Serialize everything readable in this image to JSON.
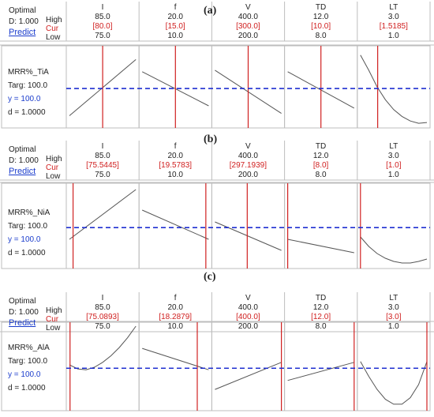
{
  "panels": [
    {
      "letter": "(a)",
      "optimal": "Optimal",
      "d_header": "D: 1.000",
      "predict": "Predict",
      "row_labels": {
        "high": "High",
        "cur": "Cur",
        "low": "Low"
      },
      "response": "MRR%_TiA",
      "targ": "Targ: 100.0",
      "y_text": "y = 100.0",
      "d_text": "d = 1.0000",
      "factors": [
        {
          "name": "I",
          "high": "85.0",
          "cur": "[80.0]",
          "low": "75.0"
        },
        {
          "name": "f",
          "high": "20.0",
          "cur": "[15.0]",
          "low": "10.0"
        },
        {
          "name": "V",
          "high": "400.0",
          "cur": "[300.0]",
          "low": "200.0"
        },
        {
          "name": "TD",
          "high": "12.0",
          "cur": "[10.0]",
          "low": "8.0"
        },
        {
          "name": "LT",
          "high": "3.0",
          "cur": "[1.5185]",
          "low": "1.0"
        }
      ]
    },
    {
      "letter": "(b)",
      "optimal": "Optimal",
      "d_header": "D: 1.000",
      "predict": "Predict",
      "row_labels": {
        "high": "High",
        "cur": "Cur",
        "low": "Low"
      },
      "response": "MRR%_NiA",
      "targ": "Targ: 100.0",
      "y_text": "y = 100.0",
      "d_text": "d = 1.0000",
      "factors": [
        {
          "name": "I",
          "high": "85.0",
          "cur": "[75.5445]",
          "low": "75.0"
        },
        {
          "name": "f",
          "high": "20.0",
          "cur": "[19.5783]",
          "low": "10.0"
        },
        {
          "name": "V",
          "high": "400.0",
          "cur": "[297.1939]",
          "low": "200.0"
        },
        {
          "name": "TD",
          "high": "12.0",
          "cur": "[8.0]",
          "low": "8.0"
        },
        {
          "name": "LT",
          "high": "3.0",
          "cur": "[1.0]",
          "low": "1.0"
        }
      ]
    },
    {
      "letter": "(c)",
      "optimal": "Optimal",
      "d_header": "D: 1.000",
      "predict": "Predict",
      "row_labels": {
        "high": "High",
        "cur": "Cur",
        "low": "Low"
      },
      "response": "MRR%_AlA",
      "targ": "Targ: 100.0",
      "y_text": "y = 100.0",
      "d_text": "d = 1.0000",
      "factors": [
        {
          "name": "I",
          "high": "85.0",
          "cur": "[75.0893]",
          "low": "75.0"
        },
        {
          "name": "f",
          "high": "20.0",
          "cur": "[18.2879]",
          "low": "10.0"
        },
        {
          "name": "V",
          "high": "400.0",
          "cur": "[400.0]",
          "low": "200.0"
        },
        {
          "name": "TD",
          "high": "12.0",
          "cur": "[12.0]",
          "low": "8.0"
        },
        {
          "name": "LT",
          "high": "3.0",
          "cur": "[3.0]",
          "low": "1.0"
        }
      ]
    }
  ],
  "colors": {
    "cur_line": "#d02020",
    "target_line": "#1f2fd0",
    "curve": "#555555",
    "grid": "#bdbdbd"
  },
  "chart_data": [
    {
      "type": "line",
      "title": "(a)",
      "ylabel": "MRR%_TiA",
      "target": 100.0,
      "ylim": [
        0,
        1
      ],
      "series": [
        {
          "x": [
            75,
            85
          ],
          "values": [
            0.12,
            0.86
          ],
          "current": 80.0
        },
        {
          "x": [
            10,
            20
          ],
          "values": [
            0.7,
            0.25
          ],
          "current": 15.0
        },
        {
          "x": [
            200,
            400
          ],
          "values": [
            0.72,
            0.15
          ],
          "current": 300.0
        },
        {
          "x": [
            8,
            12
          ],
          "values": [
            0.7,
            0.22
          ],
          "current": 10.0
        },
        {
          "x": [
            1.0,
            1.25,
            1.5,
            1.75,
            2.0,
            2.25,
            2.5,
            2.75,
            3.0
          ],
          "values": [
            0.92,
            0.72,
            0.5,
            0.33,
            0.2,
            0.11,
            0.05,
            0.02,
            0.03
          ],
          "current": 1.5185
        }
      ]
    },
    {
      "type": "line",
      "title": "(b)",
      "ylabel": "MRR%_NiA",
      "target": 100.0,
      "ylim": [
        0,
        1
      ],
      "series": [
        {
          "x": [
            75,
            85
          ],
          "values": [
            0.33,
            0.96
          ],
          "current": 75.5445
        },
        {
          "x": [
            10,
            20
          ],
          "values": [
            0.7,
            0.33
          ],
          "current": 19.5783
        },
        {
          "x": [
            200,
            400
          ],
          "values": [
            0.55,
            0.19
          ],
          "current": 297.1939
        },
        {
          "x": [
            8,
            12
          ],
          "values": [
            0.33,
            0.16
          ],
          "current": 8.0
        },
        {
          "x": [
            1.0,
            1.25,
            1.5,
            1.75,
            2.0,
            2.25,
            2.5,
            2.75,
            3.0
          ],
          "values": [
            0.36,
            0.24,
            0.15,
            0.09,
            0.05,
            0.03,
            0.03,
            0.05,
            0.08
          ],
          "current": 1.0
        }
      ]
    },
    {
      "type": "line",
      "title": "(c)",
      "ylabel": "MRR%_AlA",
      "target": 100.0,
      "ylim": [
        0,
        1
      ],
      "series": [
        {
          "x": [
            75,
            76.25,
            77.5,
            78.75,
            80,
            81.25,
            82.5,
            83.75,
            85
          ],
          "values": [
            0.52,
            0.47,
            0.46,
            0.49,
            0.55,
            0.63,
            0.73,
            0.85,
            0.99
          ],
          "current": 75.0893
        },
        {
          "x": [
            10,
            20
          ],
          "values": [
            0.72,
            0.46
          ],
          "current": 18.2879
        },
        {
          "x": [
            200,
            400
          ],
          "values": [
            0.22,
            0.55
          ],
          "current": 400.0
        },
        {
          "x": [
            8,
            12
          ],
          "values": [
            0.33,
            0.55
          ],
          "current": 12.0
        },
        {
          "x": [
            1.0,
            1.25,
            1.5,
            1.75,
            2.0,
            2.25,
            2.5,
            2.75,
            3.0
          ],
          "values": [
            0.56,
            0.38,
            0.22,
            0.1,
            0.04,
            0.04,
            0.12,
            0.28,
            0.56
          ],
          "current": 3.0
        }
      ]
    }
  ]
}
